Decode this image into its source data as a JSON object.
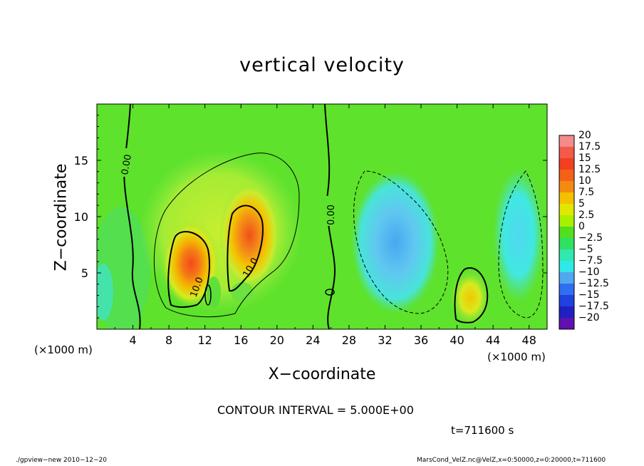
{
  "chart_data": {
    "type": "heatmap",
    "title": "vertical velocity",
    "xlabel": "X−coordinate",
    "ylabel": "Z−coordinate",
    "x_unit_left": "(×1000 m)",
    "x_unit_right": "(×1000 m)",
    "xlim": [
      0,
      50
    ],
    "ylim": [
      0,
      20
    ],
    "x_ticks": [
      "4",
      "8",
      "12",
      "16",
      "20",
      "24",
      "28",
      "32",
      "36",
      "40",
      "44",
      "48"
    ],
    "y_ticks": [
      "5",
      "10",
      "15"
    ],
    "contour_labels": [
      "0.00",
      "0.00",
      "10.0",
      "10.0"
    ],
    "colorbar": {
      "labels": [
        "20",
        "17.5",
        "15",
        "12.5",
        "10",
        "7.5",
        "5",
        "2.5",
        "0",
        "−2.5",
        "−5",
        "−7.5",
        "−10",
        "−12.5",
        "−15",
        "−17.5",
        "−20"
      ],
      "colors": [
        "#f48a8a",
        "#f45a4a",
        "#f04020",
        "#f46018",
        "#f48a10",
        "#f4c000",
        "#e0e800",
        "#a8f000",
        "#50e020",
        "#30e060",
        "#30e8b0",
        "#30e8e8",
        "#50a8f0",
        "#3070f0",
        "#2040e0",
        "#2020c0",
        "#6010b0"
      ]
    },
    "features": [
      {
        "kind": "updraft",
        "x": 10.5,
        "z": 5.5,
        "peak": 14
      },
      {
        "kind": "updraft",
        "x": 16.5,
        "z": 8,
        "peak": 13
      },
      {
        "kind": "updraft",
        "x": 41.5,
        "z": 2.5,
        "peak": 7
      },
      {
        "kind": "downdraft",
        "x": 33.5,
        "z": 7,
        "peak": -8
      },
      {
        "kind": "downdraft",
        "x": 47,
        "z": 7,
        "peak": -7
      }
    ],
    "grid": false
  },
  "annotations": {
    "contour_interval": "CONTOUR INTERVAL = 5.000E+00",
    "time": "t=711600 s"
  },
  "footer": {
    "left": "./gpview−new  2010−12−20",
    "right": "MarsCond_VelZ.nc@VelZ,x=0:50000,z=0:20000,t=711600"
  }
}
